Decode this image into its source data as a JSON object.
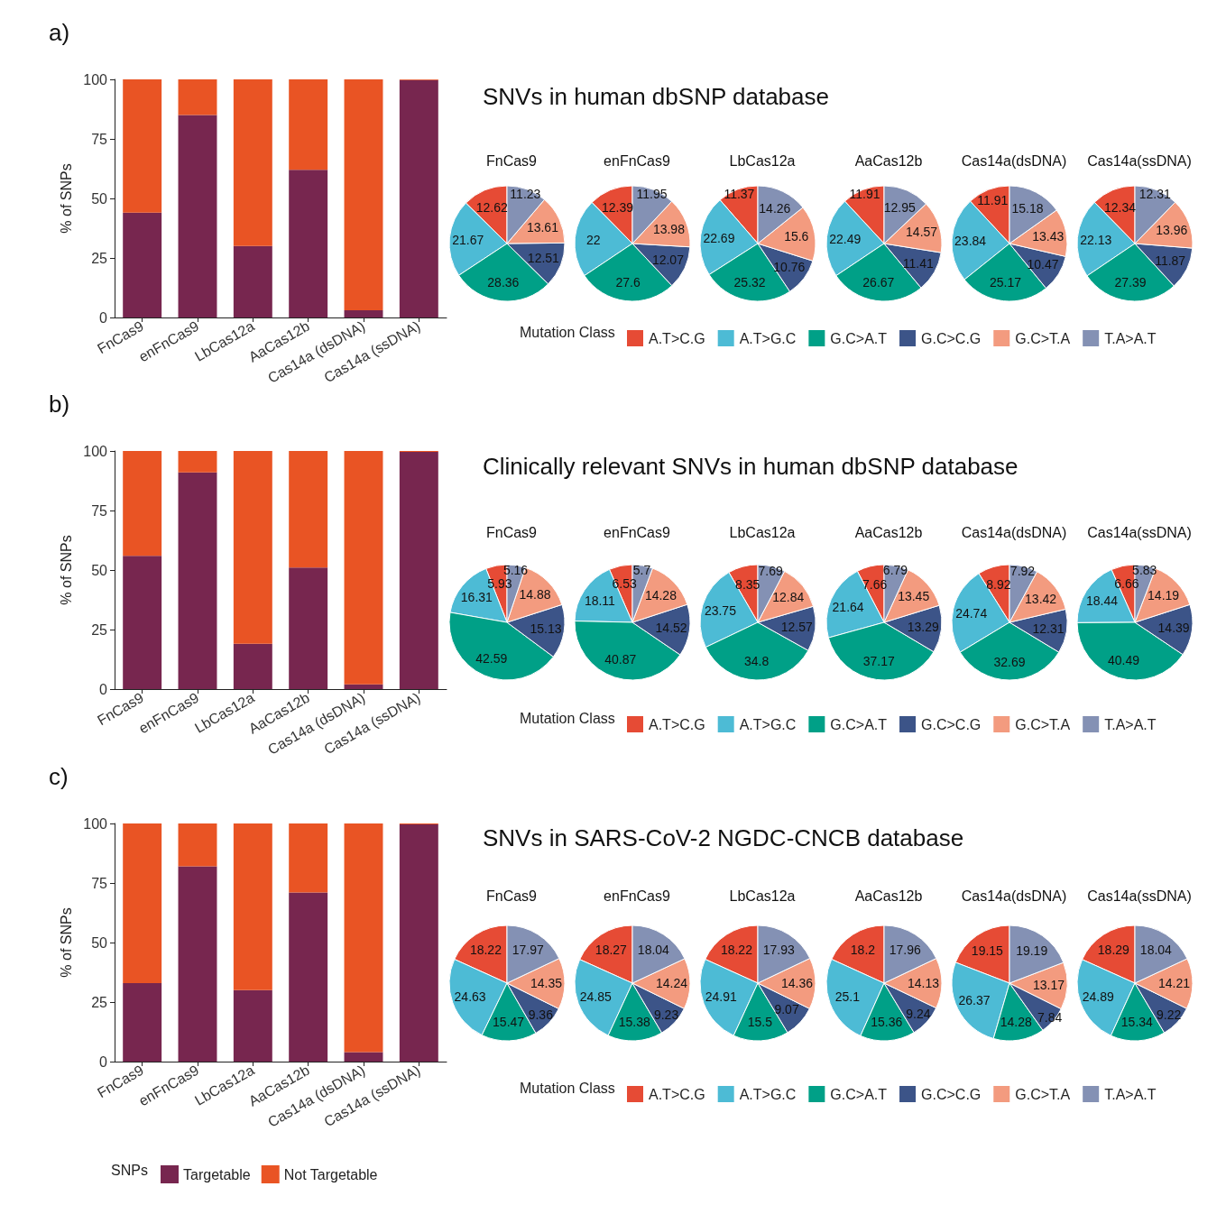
{
  "chart_data": [
    {
      "type": "bar",
      "stacked": true,
      "annotations": [
        "a)"
      ],
      "categories": [
        "FnCas9",
        "enFnCas9",
        "LbCas12a",
        "AaCas12b",
        "Cas14a (dsDNA)",
        "Cas14a (ssDNA)"
      ],
      "ylabel": "% of SNPs",
      "ylim": [
        0,
        100
      ],
      "yticks": [
        0,
        25,
        50,
        75,
        100
      ],
      "series": [
        {
          "color": "#77264f",
          "values": [
            44,
            85,
            30,
            62,
            3,
            99.7
          ]
        },
        {
          "color": "#e95424",
          "values": [
            56,
            15,
            70,
            38,
            97,
            0.3
          ]
        }
      ]
    },
    {
      "type": "other",
      "title": "SNVs in human dbSNP database"
    },
    {
      "type": "pie",
      "title": "FnCas9",
      "legend": "bottom",
      "legend_title": "Mutation Class",
      "data_labels": true,
      "categories": [
        "A.T>C.G",
        "A.T>G.C",
        "G.C>A.T",
        "G.C>C.G",
        "G.C>T.A",
        "T.A>A.T"
      ],
      "values": [
        12.62,
        21.67,
        28.36,
        12.51,
        13.61,
        11.23
      ],
      "colors": [
        "#e64b35",
        "#4dbbd5",
        "#00a087",
        "#3c5488",
        "#f39b7f",
        "#8491b4"
      ]
    },
    {
      "type": "pie",
      "title": "enFnCas9",
      "data_labels": true,
      "categories": [
        null,
        null,
        null,
        null,
        null,
        null
      ],
      "values": [
        12.39,
        22,
        27.6,
        12.07,
        13.98,
        11.95
      ],
      "colors": [
        "#e64b35",
        "#4dbbd5",
        "#00a087",
        "#3c5488",
        "#f39b7f",
        "#8491b4"
      ]
    },
    {
      "type": "pie",
      "title": "LbCas12a",
      "data_labels": true,
      "categories": [
        null,
        null,
        null,
        null,
        null,
        null
      ],
      "values": [
        11.37,
        22.69,
        25.32,
        10.76,
        15.6,
        14.26
      ],
      "colors": [
        "#e64b35",
        "#4dbbd5",
        "#00a087",
        "#3c5488",
        "#f39b7f",
        "#8491b4"
      ]
    },
    {
      "type": "pie",
      "title": "AaCas12b",
      "data_labels": true,
      "categories": [
        null,
        null,
        null,
        null,
        null,
        null
      ],
      "values": [
        11.91,
        22.49,
        26.67,
        11.41,
        14.57,
        12.95
      ],
      "colors": [
        "#e64b35",
        "#4dbbd5",
        "#00a087",
        "#3c5488",
        "#f39b7f",
        "#8491b4"
      ]
    },
    {
      "type": "pie",
      "title": "Cas14a(dsDNA)",
      "data_labels": true,
      "categories": [
        null,
        null,
        null,
        null,
        null,
        null
      ],
      "values": [
        11.91,
        23.84,
        25.17,
        10.47,
        13.43,
        15.18
      ],
      "colors": [
        "#e64b35",
        "#4dbbd5",
        "#00a087",
        "#3c5488",
        "#f39b7f",
        "#8491b4"
      ]
    },
    {
      "type": "pie",
      "title": "Cas14a(ssDNA)",
      "data_labels": true,
      "categories": [
        null,
        null,
        null,
        null,
        null,
        null
      ],
      "values": [
        12.34,
        22.13,
        27.39,
        11.87,
        13.96,
        12.31
      ],
      "colors": [
        "#e64b35",
        "#4dbbd5",
        "#00a087",
        "#3c5488",
        "#f39b7f",
        "#8491b4"
      ]
    },
    {
      "type": "bar",
      "stacked": true,
      "annotations": [
        "b)"
      ],
      "categories": [
        "FnCas9",
        "enFnCas9",
        "LbCas12a",
        "AaCas12b",
        "Cas14a (dsDNA)",
        "Cas14a (ssDNA)"
      ],
      "ylabel": "% of SNPs",
      "ylim": [
        0,
        100
      ],
      "yticks": [
        0,
        25,
        50,
        75,
        100
      ],
      "series": [
        {
          "color": "#77264f",
          "values": [
            56,
            91,
            19,
            51,
            2,
            99.6
          ]
        },
        {
          "color": "#e95424",
          "values": [
            44,
            9,
            81,
            49,
            98,
            0.4
          ]
        }
      ]
    },
    {
      "type": "other",
      "title": "Clinically relevant SNVs in human dbSNP database"
    },
    {
      "type": "pie",
      "title": "FnCas9",
      "legend": "bottom",
      "legend_title": "Mutation Class",
      "data_labels": true,
      "categories": [
        "A.T>C.G",
        "A.T>G.C",
        "G.C>A.T",
        "G.C>C.G",
        "G.C>T.A",
        "T.A>A.T"
      ],
      "values": [
        5.93,
        16.31,
        42.59,
        15.13,
        14.88,
        5.16
      ],
      "colors": [
        "#e64b35",
        "#4dbbd5",
        "#00a087",
        "#3c5488",
        "#f39b7f",
        "#8491b4"
      ]
    },
    {
      "type": "pie",
      "title": "enFnCas9",
      "data_labels": true,
      "categories": [
        null,
        null,
        null,
        null,
        null,
        null
      ],
      "values": [
        6.53,
        18.11,
        40.87,
        14.52,
        14.28,
        5.7
      ],
      "colors": [
        "#e64b35",
        "#4dbbd5",
        "#00a087",
        "#3c5488",
        "#f39b7f",
        "#8491b4"
      ]
    },
    {
      "type": "pie",
      "title": "LbCas12a",
      "data_labels": true,
      "categories": [
        null,
        null,
        null,
        null,
        null,
        null
      ],
      "values": [
        8.35,
        23.75,
        34.8,
        12.57,
        12.84,
        7.69
      ],
      "colors": [
        "#e64b35",
        "#4dbbd5",
        "#00a087",
        "#3c5488",
        "#f39b7f",
        "#8491b4"
      ]
    },
    {
      "type": "pie",
      "title": "AaCas12b",
      "data_labels": true,
      "categories": [
        null,
        null,
        null,
        null,
        null,
        null
      ],
      "values": [
        7.66,
        21.64,
        37.17,
        13.29,
        13.45,
        6.79
      ],
      "colors": [
        "#e64b35",
        "#4dbbd5",
        "#00a087",
        "#3c5488",
        "#f39b7f",
        "#8491b4"
      ]
    },
    {
      "type": "pie",
      "title": "Cas14a(dsDNA)",
      "data_labels": true,
      "categories": [
        null,
        null,
        null,
        null,
        null,
        null
      ],
      "values": [
        8.92,
        24.74,
        32.69,
        12.31,
        13.42,
        7.92
      ],
      "colors": [
        "#e64b35",
        "#4dbbd5",
        "#00a087",
        "#3c5488",
        "#f39b7f",
        "#8491b4"
      ]
    },
    {
      "type": "pie",
      "title": "Cas14a(ssDNA)",
      "data_labels": true,
      "categories": [
        null,
        null,
        null,
        null,
        null,
        null
      ],
      "values": [
        6.66,
        18.44,
        40.49,
        14.39,
        14.19,
        5.83
      ],
      "colors": [
        "#e64b35",
        "#4dbbd5",
        "#00a087",
        "#3c5488",
        "#f39b7f",
        "#8491b4"
      ]
    },
    {
      "type": "bar",
      "stacked": true,
      "annotations": [
        "c)"
      ],
      "categories": [
        "FnCas9",
        "enFnCas9",
        "LbCas12a",
        "AaCas12b",
        "Cas14a (dsDNA)",
        "Cas14a (ssDNA)"
      ],
      "ylabel": "% of SNPs",
      "ylim": [
        0,
        100
      ],
      "yticks": [
        0,
        25,
        50,
        75,
        100
      ],
      "legend": "bottom",
      "legend_title": "SNPs",
      "series": [
        {
          "name": "Targetable",
          "color": "#77264f",
          "values": [
            33,
            82,
            30,
            71,
            4,
            99.6
          ]
        },
        {
          "name": "Not Targetable",
          "color": "#e95424",
          "values": [
            67,
            18,
            70,
            29,
            96,
            0.4
          ]
        }
      ]
    },
    {
      "type": "other",
      "title": "SNVs in SARS-CoV-2 NGDC-CNCB database"
    },
    {
      "type": "pie",
      "title": "FnCas9",
      "legend": "bottom",
      "legend_title": "Mutation Class",
      "data_labels": true,
      "categories": [
        "A.T>C.G",
        "A.T>G.C",
        "G.C>A.T",
        "G.C>C.G",
        "G.C>T.A",
        "T.A>A.T"
      ],
      "values": [
        18.22,
        24.63,
        15.47,
        9.36,
        14.35,
        17.97
      ],
      "colors": [
        "#e64b35",
        "#4dbbd5",
        "#00a087",
        "#3c5488",
        "#f39b7f",
        "#8491b4"
      ]
    },
    {
      "type": "pie",
      "title": "enFnCas9",
      "data_labels": true,
      "categories": [
        null,
        null,
        null,
        null,
        null,
        null
      ],
      "values": [
        18.27,
        24.85,
        15.38,
        9.23,
        14.24,
        18.04
      ],
      "colors": [
        "#e64b35",
        "#4dbbd5",
        "#00a087",
        "#3c5488",
        "#f39b7f",
        "#8491b4"
      ]
    },
    {
      "type": "pie",
      "title": "LbCas12a",
      "data_labels": true,
      "categories": [
        null,
        null,
        null,
        null,
        null,
        null
      ],
      "values": [
        18.22,
        24.91,
        15.5,
        9.07,
        14.36,
        17.93
      ],
      "colors": [
        "#e64b35",
        "#4dbbd5",
        "#00a087",
        "#3c5488",
        "#f39b7f",
        "#8491b4"
      ]
    },
    {
      "type": "pie",
      "title": "AaCas12b",
      "data_labels": true,
      "categories": [
        null,
        null,
        null,
        null,
        null,
        null
      ],
      "values": [
        18.2,
        25.1,
        15.36,
        9.24,
        14.13,
        17.96
      ],
      "colors": [
        "#e64b35",
        "#4dbbd5",
        "#00a087",
        "#3c5488",
        "#f39b7f",
        "#8491b4"
      ]
    },
    {
      "type": "pie",
      "title": "Cas14a(dsDNA)",
      "data_labels": true,
      "categories": [
        null,
        null,
        null,
        null,
        null,
        null
      ],
      "values": [
        19.15,
        26.37,
        14.28,
        7.84,
        13.17,
        19.19
      ],
      "colors": [
        "#e64b35",
        "#4dbbd5",
        "#00a087",
        "#3c5488",
        "#f39b7f",
        "#8491b4"
      ]
    },
    {
      "type": "pie",
      "title": "Cas14a(ssDNA)",
      "data_labels": true,
      "categories": [
        null,
        null,
        null,
        null,
        null,
        null
      ],
      "values": [
        18.29,
        24.89,
        15.34,
        9.22,
        14.21,
        18.04
      ],
      "colors": [
        "#e64b35",
        "#4dbbd5",
        "#00a087",
        "#3c5488",
        "#f39b7f",
        "#8491b4"
      ]
    }
  ]
}
